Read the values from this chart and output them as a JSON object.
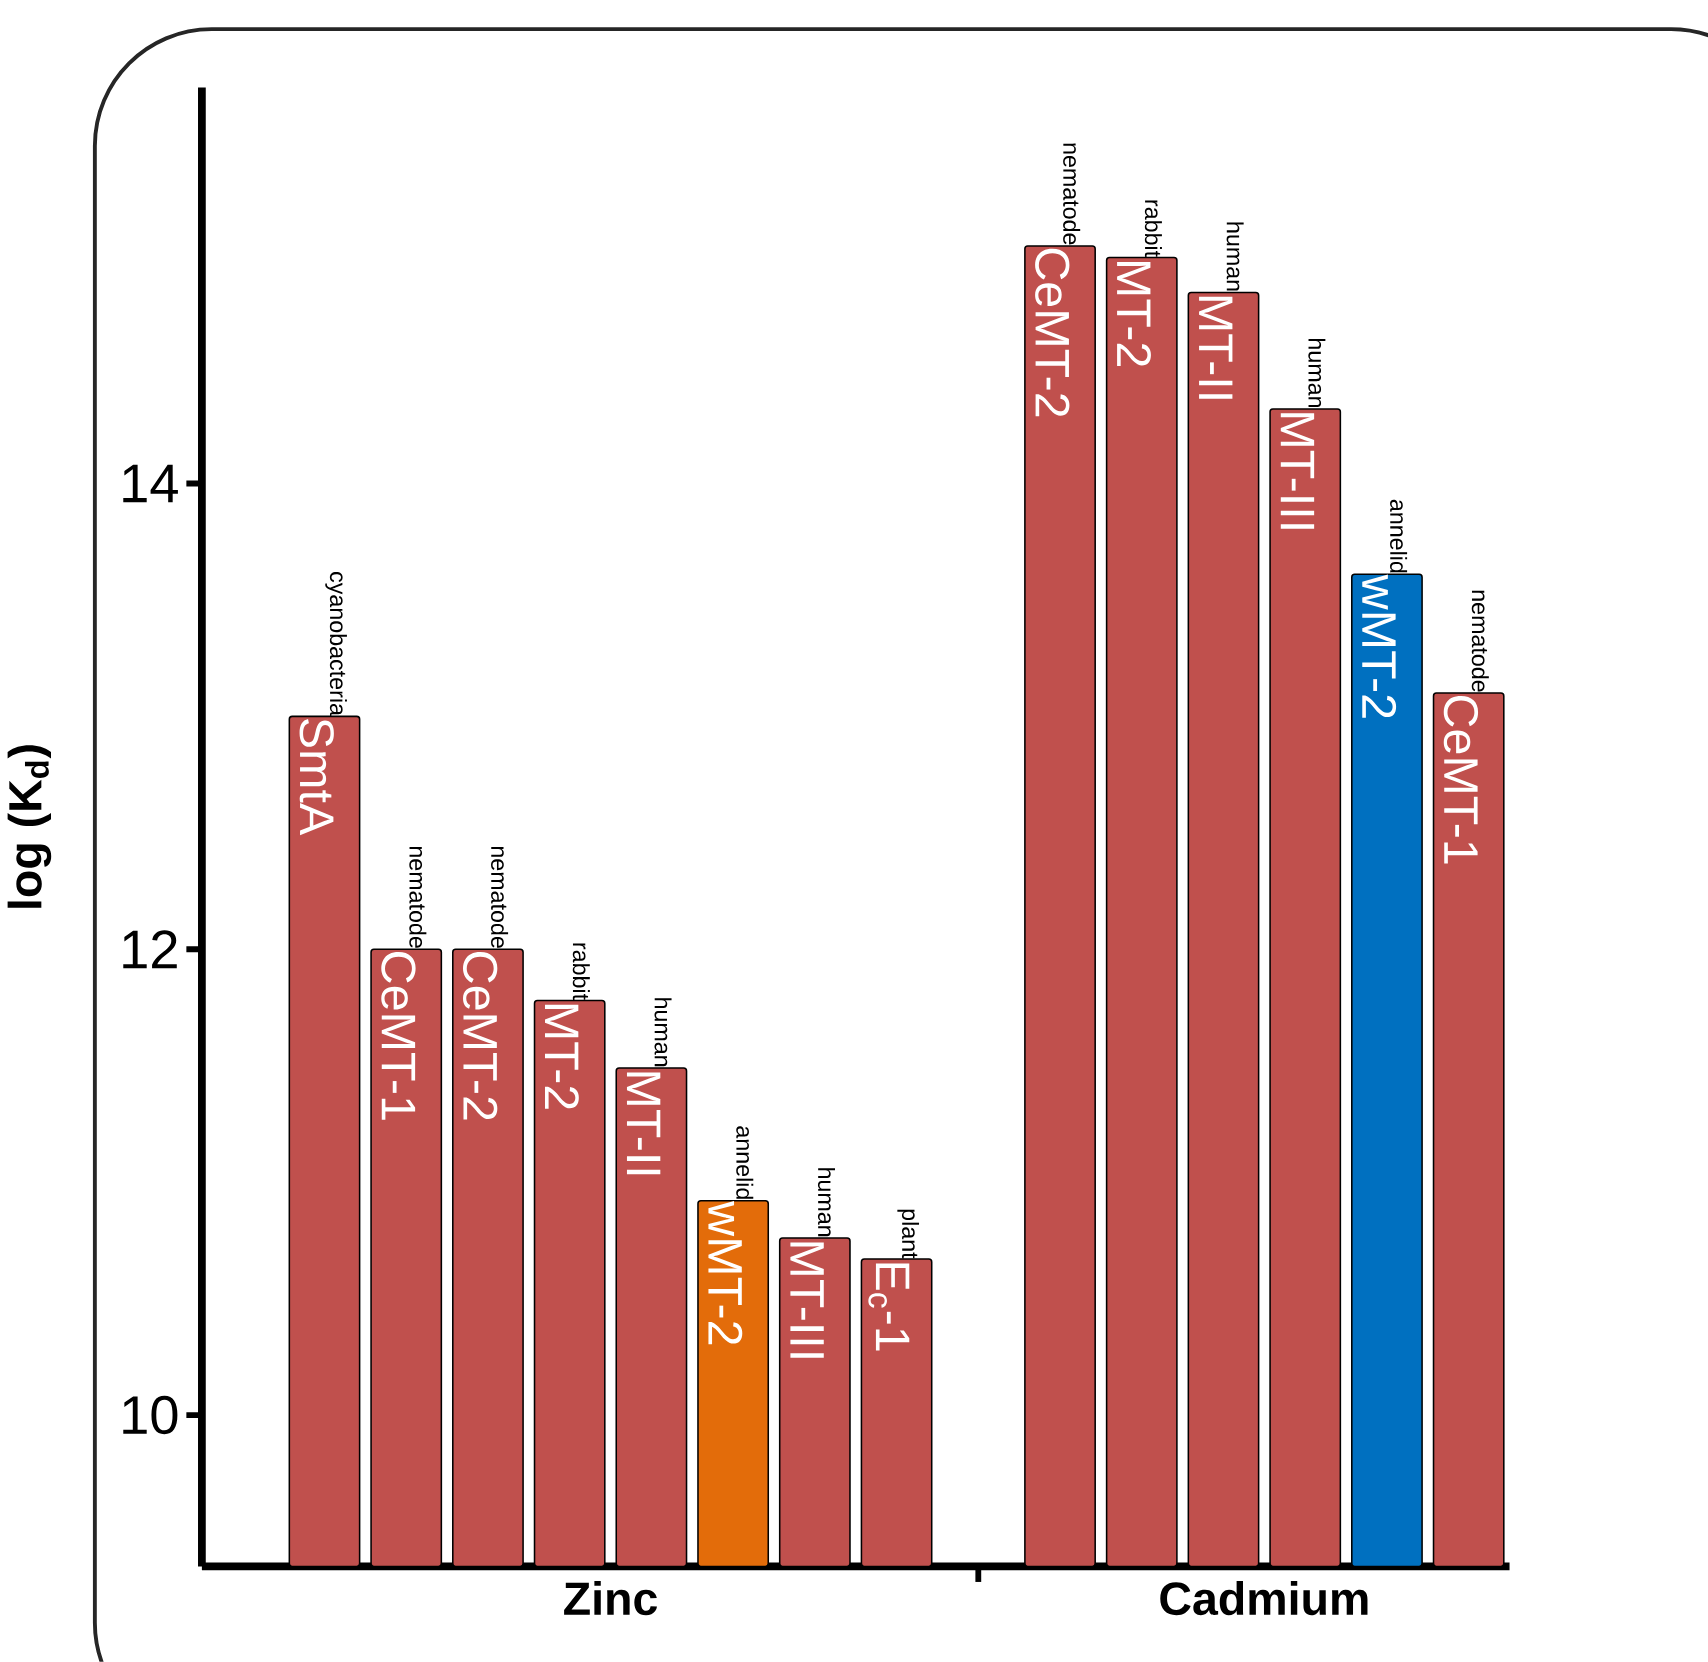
{
  "chart_data": {
    "type": "bar",
    "ylabel": "log (K$_{d}$)",
    "categories": [
      "SmtA",
      "CeMT-1",
      "CeMT-2",
      "MT-2",
      "MT-II",
      "wMT-2",
      "MT-III",
      "E$_{c}$-1",
      null,
      "CeMT-2",
      "MT-2",
      "MT-II",
      "MT-III",
      "wMT-2",
      "CeMT-1"
    ],
    "values": [
      13.0,
      12.0,
      12.0,
      11.78,
      11.49,
      10.92,
      10.76,
      10.67,
      null,
      15.02,
      14.97,
      14.82,
      14.32,
      13.61,
      13.1
    ],
    "colors": [
      "#c0504d",
      "#c0504d",
      "#c0504d",
      "#c0504d",
      "#c0504d",
      "#e36c0a",
      "#c0504d",
      "#c0504d",
      null,
      "#c0504d",
      "#c0504d",
      "#c0504d",
      "#c0504d",
      "#0070c0",
      "#c0504d"
    ],
    "ylim": [
      9.35,
      15.7
    ],
    "yticks": [
      10,
      12,
      14
    ],
    "annotations": [
      "Zinc",
      "Cadmium",
      "cyanobacteria",
      "nematode",
      "nematode",
      "rabbit",
      "human",
      "annelid",
      "human",
      "plant",
      "nematode",
      "rabbit",
      "human",
      "human",
      "annelid",
      "nematode"
    ]
  }
}
